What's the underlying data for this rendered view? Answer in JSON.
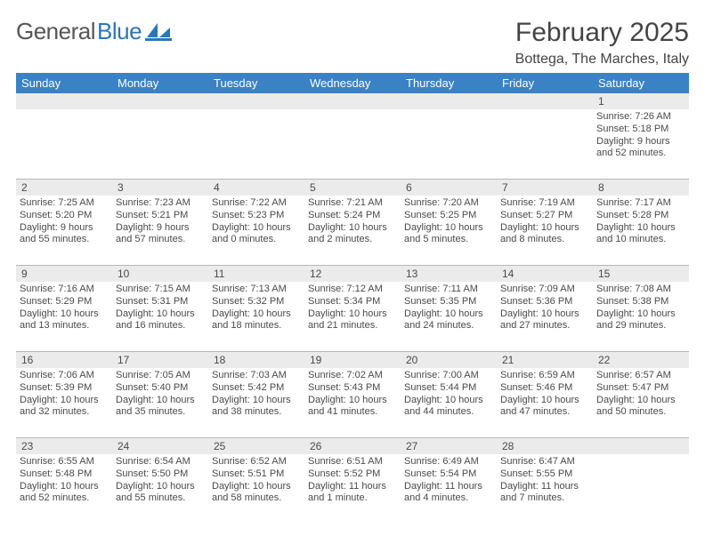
{
  "logo": {
    "text_gray": "General",
    "text_blue": "Blue"
  },
  "title": "February 2025",
  "location": "Bottega, The Marches, Italy",
  "day_headers": [
    "Sunday",
    "Monday",
    "Tuesday",
    "Wednesday",
    "Thursday",
    "Friday",
    "Saturday"
  ],
  "colors": {
    "header_bg": "#3b82c4",
    "header_text": "#ffffff",
    "daynum_bg": "#ebebeb",
    "border": "#b7b7b7",
    "text": "#4a4a4a",
    "logo_gray": "#565656",
    "logo_blue": "#2d76b6"
  },
  "typography": {
    "title_fontsize": 30,
    "location_fontsize": 16,
    "header_fontsize": 13,
    "daynum_fontsize": 12,
    "info_fontsize": 11
  },
  "weeks": [
    [
      {
        "n": "",
        "sunrise": "",
        "sunset": "",
        "daylight": ""
      },
      {
        "n": "",
        "sunrise": "",
        "sunset": "",
        "daylight": ""
      },
      {
        "n": "",
        "sunrise": "",
        "sunset": "",
        "daylight": ""
      },
      {
        "n": "",
        "sunrise": "",
        "sunset": "",
        "daylight": ""
      },
      {
        "n": "",
        "sunrise": "",
        "sunset": "",
        "daylight": ""
      },
      {
        "n": "",
        "sunrise": "",
        "sunset": "",
        "daylight": ""
      },
      {
        "n": "1",
        "sunrise": "Sunrise: 7:26 AM",
        "sunset": "Sunset: 5:18 PM",
        "daylight": "Daylight: 9 hours and 52 minutes."
      }
    ],
    [
      {
        "n": "2",
        "sunrise": "Sunrise: 7:25 AM",
        "sunset": "Sunset: 5:20 PM",
        "daylight": "Daylight: 9 hours and 55 minutes."
      },
      {
        "n": "3",
        "sunrise": "Sunrise: 7:23 AM",
        "sunset": "Sunset: 5:21 PM",
        "daylight": "Daylight: 9 hours and 57 minutes."
      },
      {
        "n": "4",
        "sunrise": "Sunrise: 7:22 AM",
        "sunset": "Sunset: 5:23 PM",
        "daylight": "Daylight: 10 hours and 0 minutes."
      },
      {
        "n": "5",
        "sunrise": "Sunrise: 7:21 AM",
        "sunset": "Sunset: 5:24 PM",
        "daylight": "Daylight: 10 hours and 2 minutes."
      },
      {
        "n": "6",
        "sunrise": "Sunrise: 7:20 AM",
        "sunset": "Sunset: 5:25 PM",
        "daylight": "Daylight: 10 hours and 5 minutes."
      },
      {
        "n": "7",
        "sunrise": "Sunrise: 7:19 AM",
        "sunset": "Sunset: 5:27 PM",
        "daylight": "Daylight: 10 hours and 8 minutes."
      },
      {
        "n": "8",
        "sunrise": "Sunrise: 7:17 AM",
        "sunset": "Sunset: 5:28 PM",
        "daylight": "Daylight: 10 hours and 10 minutes."
      }
    ],
    [
      {
        "n": "9",
        "sunrise": "Sunrise: 7:16 AM",
        "sunset": "Sunset: 5:29 PM",
        "daylight": "Daylight: 10 hours and 13 minutes."
      },
      {
        "n": "10",
        "sunrise": "Sunrise: 7:15 AM",
        "sunset": "Sunset: 5:31 PM",
        "daylight": "Daylight: 10 hours and 16 minutes."
      },
      {
        "n": "11",
        "sunrise": "Sunrise: 7:13 AM",
        "sunset": "Sunset: 5:32 PM",
        "daylight": "Daylight: 10 hours and 18 minutes."
      },
      {
        "n": "12",
        "sunrise": "Sunrise: 7:12 AM",
        "sunset": "Sunset: 5:34 PM",
        "daylight": "Daylight: 10 hours and 21 minutes."
      },
      {
        "n": "13",
        "sunrise": "Sunrise: 7:11 AM",
        "sunset": "Sunset: 5:35 PM",
        "daylight": "Daylight: 10 hours and 24 minutes."
      },
      {
        "n": "14",
        "sunrise": "Sunrise: 7:09 AM",
        "sunset": "Sunset: 5:36 PM",
        "daylight": "Daylight: 10 hours and 27 minutes."
      },
      {
        "n": "15",
        "sunrise": "Sunrise: 7:08 AM",
        "sunset": "Sunset: 5:38 PM",
        "daylight": "Daylight: 10 hours and 29 minutes."
      }
    ],
    [
      {
        "n": "16",
        "sunrise": "Sunrise: 7:06 AM",
        "sunset": "Sunset: 5:39 PM",
        "daylight": "Daylight: 10 hours and 32 minutes."
      },
      {
        "n": "17",
        "sunrise": "Sunrise: 7:05 AM",
        "sunset": "Sunset: 5:40 PM",
        "daylight": "Daylight: 10 hours and 35 minutes."
      },
      {
        "n": "18",
        "sunrise": "Sunrise: 7:03 AM",
        "sunset": "Sunset: 5:42 PM",
        "daylight": "Daylight: 10 hours and 38 minutes."
      },
      {
        "n": "19",
        "sunrise": "Sunrise: 7:02 AM",
        "sunset": "Sunset: 5:43 PM",
        "daylight": "Daylight: 10 hours and 41 minutes."
      },
      {
        "n": "20",
        "sunrise": "Sunrise: 7:00 AM",
        "sunset": "Sunset: 5:44 PM",
        "daylight": "Daylight: 10 hours and 44 minutes."
      },
      {
        "n": "21",
        "sunrise": "Sunrise: 6:59 AM",
        "sunset": "Sunset: 5:46 PM",
        "daylight": "Daylight: 10 hours and 47 minutes."
      },
      {
        "n": "22",
        "sunrise": "Sunrise: 6:57 AM",
        "sunset": "Sunset: 5:47 PM",
        "daylight": "Daylight: 10 hours and 50 minutes."
      }
    ],
    [
      {
        "n": "23",
        "sunrise": "Sunrise: 6:55 AM",
        "sunset": "Sunset: 5:48 PM",
        "daylight": "Daylight: 10 hours and 52 minutes."
      },
      {
        "n": "24",
        "sunrise": "Sunrise: 6:54 AM",
        "sunset": "Sunset: 5:50 PM",
        "daylight": "Daylight: 10 hours and 55 minutes."
      },
      {
        "n": "25",
        "sunrise": "Sunrise: 6:52 AM",
        "sunset": "Sunset: 5:51 PM",
        "daylight": "Daylight: 10 hours and 58 minutes."
      },
      {
        "n": "26",
        "sunrise": "Sunrise: 6:51 AM",
        "sunset": "Sunset: 5:52 PM",
        "daylight": "Daylight: 11 hours and 1 minute."
      },
      {
        "n": "27",
        "sunrise": "Sunrise: 6:49 AM",
        "sunset": "Sunset: 5:54 PM",
        "daylight": "Daylight: 11 hours and 4 minutes."
      },
      {
        "n": "28",
        "sunrise": "Sunrise: 6:47 AM",
        "sunset": "Sunset: 5:55 PM",
        "daylight": "Daylight: 11 hours and 7 minutes."
      },
      {
        "n": "",
        "sunrise": "",
        "sunset": "",
        "daylight": ""
      }
    ]
  ]
}
